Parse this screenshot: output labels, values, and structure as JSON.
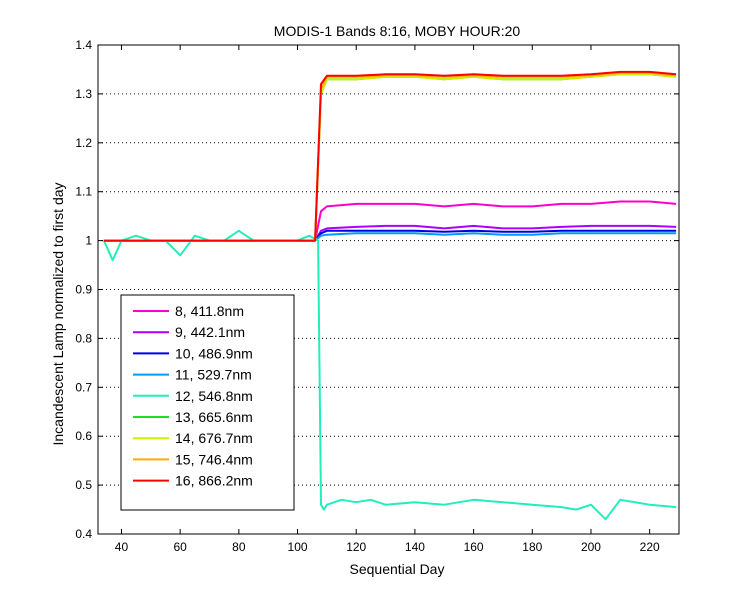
{
  "chart_data": {
    "type": "line",
    "title": "MODIS-1 Bands 8:16, MOBY HOUR:20",
    "xlabel": "Sequential Day",
    "ylabel": "Incandescent Lamp normalized to first day",
    "xlim": [
      32,
      230
    ],
    "ylim": [
      0.4,
      1.4
    ],
    "xticks": [
      40,
      60,
      80,
      100,
      120,
      140,
      160,
      180,
      200,
      220
    ],
    "yticks": [
      0.4,
      0.5,
      0.6,
      0.7,
      0.8,
      0.9,
      1,
      1.1,
      1.2,
      1.3,
      1.4
    ],
    "ytick_labels": [
      "0.4",
      "0.5",
      "0.6",
      "0.7",
      "0.8",
      "0.9",
      "1",
      "1.1",
      "1.2",
      "1.3",
      "1.4"
    ],
    "grid": "horizontal dotted",
    "legend_position": "lower-left",
    "series": [
      {
        "name": "8, 411.8nm",
        "color": "#ff00cc",
        "x": [
          34,
          40,
          50,
          60,
          70,
          80,
          90,
          100,
          106,
          108,
          110,
          120,
          130,
          140,
          150,
          160,
          170,
          180,
          190,
          200,
          210,
          220,
          229
        ],
        "y": [
          1.0,
          1.0,
          1.0,
          1.0,
          1.0,
          1.0,
          1.0,
          1.0,
          1.0,
          1.06,
          1.07,
          1.075,
          1.075,
          1.075,
          1.07,
          1.075,
          1.07,
          1.07,
          1.075,
          1.075,
          1.08,
          1.08,
          1.075
        ]
      },
      {
        "name": "9, 442.1nm",
        "color": "#aa00ff",
        "x": [
          34,
          40,
          50,
          60,
          70,
          80,
          90,
          100,
          106,
          108,
          110,
          120,
          130,
          140,
          150,
          160,
          170,
          180,
          190,
          200,
          210,
          220,
          229
        ],
        "y": [
          1.0,
          1.0,
          1.0,
          1.0,
          1.0,
          1.0,
          1.0,
          1.0,
          1.0,
          1.02,
          1.025,
          1.028,
          1.03,
          1.03,
          1.025,
          1.03,
          1.025,
          1.025,
          1.028,
          1.03,
          1.03,
          1.03,
          1.028
        ]
      },
      {
        "name": "10, 486.9nm",
        "color": "#0000dd",
        "x": [
          34,
          40,
          50,
          60,
          70,
          80,
          90,
          100,
          106,
          108,
          110,
          120,
          130,
          140,
          150,
          160,
          170,
          180,
          190,
          200,
          210,
          220,
          229
        ],
        "y": [
          1.0,
          1.0,
          1.0,
          1.0,
          1.0,
          1.0,
          1.0,
          1.0,
          1.0,
          1.015,
          1.02,
          1.02,
          1.02,
          1.02,
          1.018,
          1.02,
          1.018,
          1.018,
          1.02,
          1.02,
          1.02,
          1.02,
          1.02
        ]
      },
      {
        "name": "11, 529.7nm",
        "color": "#0099ff",
        "x": [
          34,
          40,
          50,
          60,
          70,
          80,
          90,
          100,
          106,
          108,
          110,
          120,
          130,
          140,
          150,
          160,
          170,
          180,
          190,
          200,
          210,
          220,
          229
        ],
        "y": [
          1.0,
          1.0,
          1.0,
          1.0,
          1.0,
          1.0,
          1.0,
          1.0,
          1.0,
          1.01,
          1.012,
          1.015,
          1.015,
          1.015,
          1.012,
          1.015,
          1.012,
          1.012,
          1.015,
          1.015,
          1.015,
          1.015,
          1.015
        ]
      },
      {
        "name": "12, 546.8nm",
        "color": "#22eebb",
        "x": [
          34,
          37,
          40,
          45,
          50,
          55,
          60,
          65,
          70,
          75,
          80,
          85,
          90,
          95,
          100,
          104,
          107,
          108,
          109,
          110,
          115,
          120,
          125,
          130,
          140,
          150,
          160,
          170,
          180,
          190,
          195,
          200,
          205,
          210,
          220,
          229
        ],
        "y": [
          1.0,
          0.96,
          1.0,
          1.01,
          1.0,
          1.0,
          0.97,
          1.01,
          1.0,
          1.0,
          1.02,
          1.0,
          1.0,
          1.0,
          1.0,
          1.01,
          1.0,
          0.46,
          0.45,
          0.46,
          0.47,
          0.465,
          0.47,
          0.46,
          0.465,
          0.46,
          0.47,
          0.465,
          0.46,
          0.455,
          0.45,
          0.46,
          0.43,
          0.47,
          0.46,
          0.455
        ]
      },
      {
        "name": "13, 665.6nm",
        "color": "#22dd22",
        "x": [
          34,
          40,
          50,
          60,
          70,
          80,
          90,
          100,
          106,
          108,
          110,
          120,
          130,
          140,
          150,
          160,
          170,
          180,
          190,
          200,
          210,
          220,
          229
        ],
        "y": [
          1.0,
          1.0,
          1.0,
          1.0,
          1.0,
          1.0,
          1.0,
          1.0,
          1.0,
          1.3,
          1.33,
          1.33,
          1.335,
          1.335,
          1.33,
          1.335,
          1.33,
          1.33,
          1.33,
          1.335,
          1.34,
          1.34,
          1.335
        ]
      },
      {
        "name": "14, 676.7nm",
        "color": "#ccee00",
        "x": [
          34,
          40,
          50,
          60,
          70,
          80,
          90,
          100,
          106,
          108,
          110,
          120,
          130,
          140,
          150,
          160,
          170,
          180,
          190,
          200,
          210,
          220,
          229
        ],
        "y": [
          1.0,
          1.0,
          1.0,
          1.0,
          1.0,
          1.0,
          1.0,
          1.0,
          1.0,
          1.3,
          1.33,
          1.33,
          1.335,
          1.335,
          1.33,
          1.335,
          1.33,
          1.33,
          1.33,
          1.335,
          1.34,
          1.34,
          1.335
        ]
      },
      {
        "name": "15, 746.4nm",
        "color": "#ffaa00",
        "x": [
          34,
          40,
          50,
          60,
          70,
          80,
          90,
          100,
          106,
          108,
          110,
          120,
          130,
          140,
          150,
          160,
          170,
          180,
          190,
          200,
          210,
          220,
          229
        ],
        "y": [
          1.0,
          1.0,
          1.0,
          1.0,
          1.0,
          1.0,
          1.0,
          1.0,
          1.0,
          1.31,
          1.335,
          1.335,
          1.338,
          1.338,
          1.335,
          1.338,
          1.335,
          1.335,
          1.335,
          1.338,
          1.343,
          1.343,
          1.338
        ]
      },
      {
        "name": "16, 866.2nm",
        "color": "#ff0000",
        "x": [
          34,
          40,
          50,
          60,
          70,
          80,
          90,
          100,
          106,
          108,
          110,
          120,
          130,
          140,
          150,
          160,
          170,
          180,
          190,
          200,
          210,
          220,
          229
        ],
        "y": [
          1.0,
          1.0,
          1.0,
          1.0,
          1.0,
          1.0,
          1.0,
          1.0,
          1.0,
          1.32,
          1.337,
          1.337,
          1.34,
          1.34,
          1.337,
          1.34,
          1.337,
          1.337,
          1.337,
          1.34,
          1.345,
          1.345,
          1.34
        ]
      }
    ]
  }
}
